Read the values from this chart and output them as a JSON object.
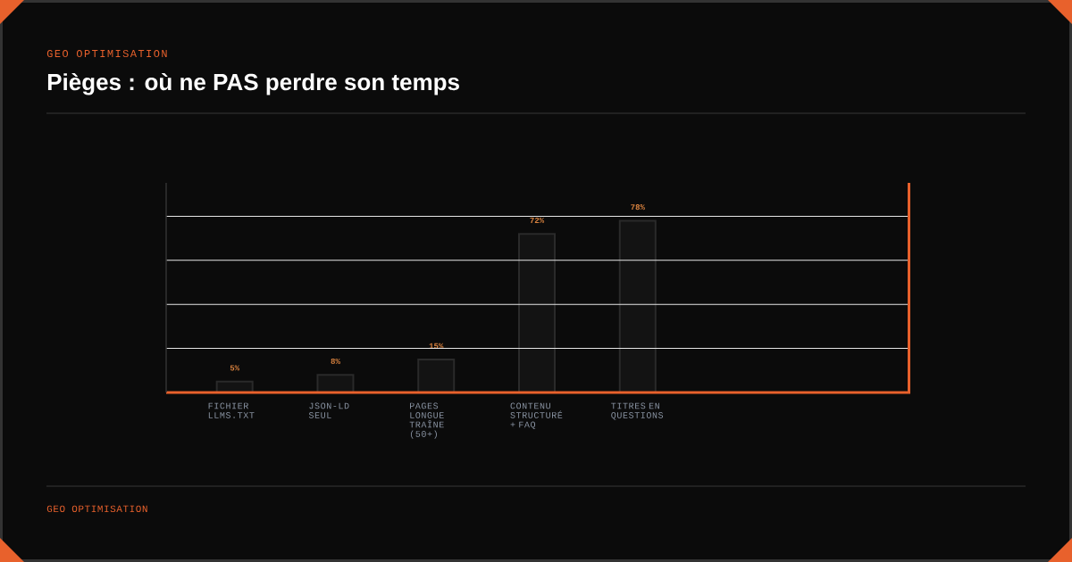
{
  "chart_data": {
    "type": "bar",
    "title": "Pièges : où ne PAS perdre son temps",
    "subtitle": "GEO OPTIMISATION",
    "categories": [
      "FICHIER LLMS.TXT",
      "JSON-LD SEUL",
      "PAGES LONGUE TRAÎNE (50+)",
      "CONTENU STRUCTURÉ + FAQ",
      "TITRES EN QUESTIONS"
    ],
    "values": [
      5,
      8,
      15,
      72,
      78
    ],
    "color": "#2a2a2a",
    "value_labels": [
      "5%",
      "8%",
      "15%",
      "72%",
      "78%"
    ],
    "grid": "y",
    "tick_labels": "x",
    "annotations": [
      "GEO OPTIMISATION"
    ]
  }
}
